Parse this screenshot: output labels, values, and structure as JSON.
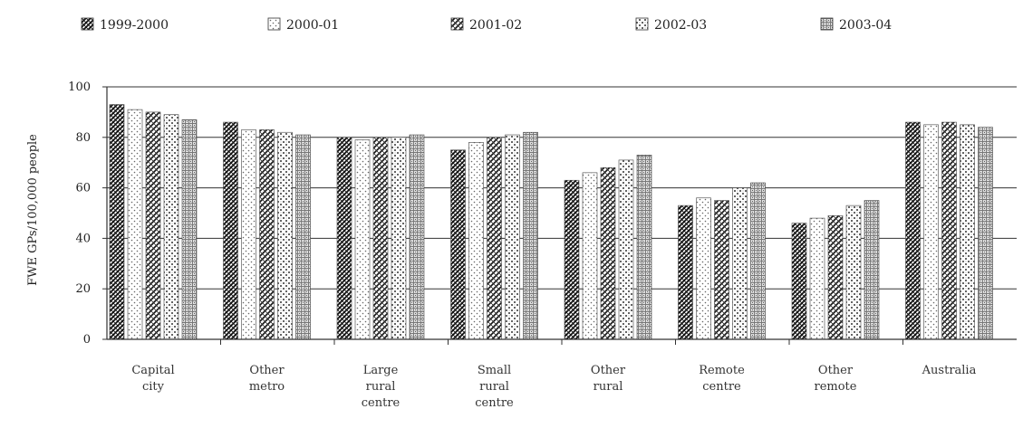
{
  "chart_data": {
    "type": "bar",
    "ylabel": "FWE GPs/100,000 people",
    "xlabel": "",
    "ylim": [
      0,
      100
    ],
    "yticks": [
      0,
      20,
      40,
      60,
      80,
      100
    ],
    "yticklabels": [
      "0",
      "20",
      "40",
      "60",
      "80",
      "100"
    ],
    "grid": "horizontal",
    "legend_position": "top",
    "categories": [
      [
        "Capital",
        "city"
      ],
      [
        "Other",
        "metro"
      ],
      [
        "Large",
        "rural",
        "centre"
      ],
      [
        "Small",
        "rural",
        "centre"
      ],
      [
        "Other",
        "rural"
      ],
      [
        "Remote",
        "centre"
      ],
      [
        "Other",
        "remote"
      ],
      [
        "Australia"
      ]
    ],
    "series": [
      {
        "name": "1999-2000",
        "pattern": "diag-dense",
        "values": [
          93,
          86,
          80,
          75,
          63,
          53,
          46,
          86
        ]
      },
      {
        "name": "2000-01",
        "pattern": "dots-light",
        "values": [
          91,
          83,
          79,
          78,
          66,
          56,
          48,
          85
        ]
      },
      {
        "name": "2001-02",
        "pattern": "diag-cross",
        "values": [
          90,
          83,
          80,
          80,
          68,
          55,
          49,
          86
        ]
      },
      {
        "name": "2002-03",
        "pattern": "dots-diag",
        "values": [
          89,
          82,
          80,
          81,
          71,
          60,
          53,
          85
        ]
      },
      {
        "name": "2003-04",
        "pattern": "grid",
        "values": [
          87,
          81,
          81,
          82,
          73,
          62,
          55,
          84
        ]
      }
    ]
  }
}
